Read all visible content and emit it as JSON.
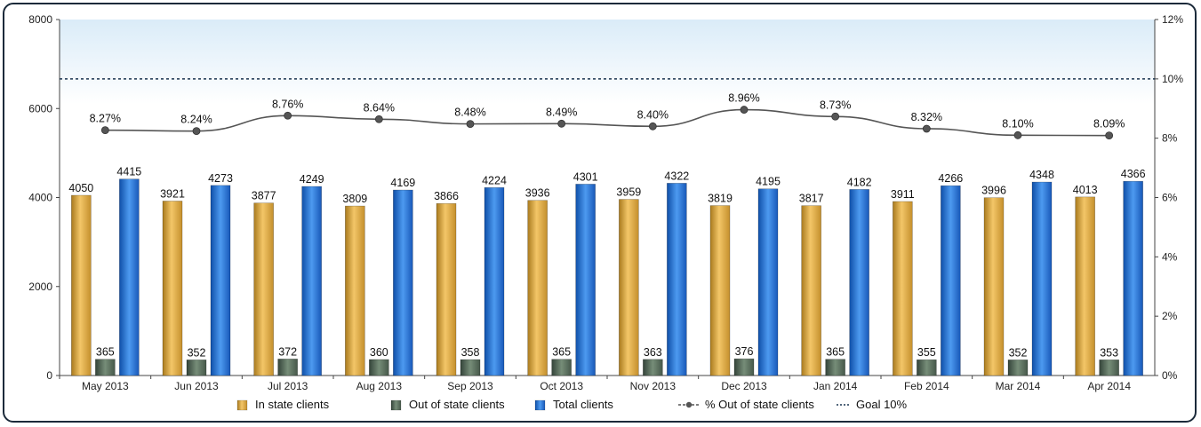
{
  "chart_data": {
    "type": "bar",
    "categories": [
      "May 2013",
      "Jun 2013",
      "Jul 2013",
      "Aug 2013",
      "Sep 2013",
      "Oct 2013",
      "Nov 2013",
      "Dec 2013",
      "Jan 2014",
      "Feb 2014",
      "Mar 2014",
      "Apr 2014"
    ],
    "series": [
      {
        "name": "In state clients",
        "type": "bar",
        "axis": "left",
        "color": "#e8b04a",
        "values": [
          4050,
          3921,
          3877,
          3809,
          3866,
          3936,
          3959,
          3819,
          3817,
          3911,
          3996,
          4013
        ]
      },
      {
        "name": "Out of state clients",
        "type": "bar",
        "axis": "left",
        "color": "#5a6e5c",
        "values": [
          365,
          352,
          372,
          360,
          358,
          365,
          363,
          376,
          365,
          355,
          352,
          353
        ]
      },
      {
        "name": "Total clients",
        "type": "bar",
        "axis": "left",
        "color": "#1f6fd6",
        "values": [
          4415,
          4273,
          4249,
          4169,
          4224,
          4301,
          4322,
          4195,
          4182,
          4266,
          4348,
          4366
        ]
      },
      {
        "name": "% Out of state clients",
        "type": "line",
        "axis": "right",
        "color": "#555555",
        "values": [
          8.27,
          8.24,
          8.76,
          8.64,
          8.48,
          8.49,
          8.4,
          8.96,
          8.73,
          8.32,
          8.1,
          8.09
        ],
        "labels": [
          "8.27%",
          "8.24%",
          "8.76%",
          "8.64%",
          "8.48%",
          "8.49%",
          "8.40%",
          "8.96%",
          "8.73%",
          "8.32%",
          "8.10%",
          "8.09%"
        ]
      }
    ],
    "goal": {
      "name": "Goal 10%",
      "value": 10,
      "axis": "right"
    },
    "left_axis": {
      "ylim": [
        0,
        8000
      ],
      "ticks": [
        "0",
        "2000",
        "4000",
        "6000",
        "8000"
      ]
    },
    "right_axis": {
      "ylim": [
        0,
        12
      ],
      "ticks": [
        "0%",
        "2%",
        "4%",
        "6%",
        "8%",
        "10%",
        "12%"
      ]
    },
    "legend_position": "bottom",
    "grid": false
  }
}
